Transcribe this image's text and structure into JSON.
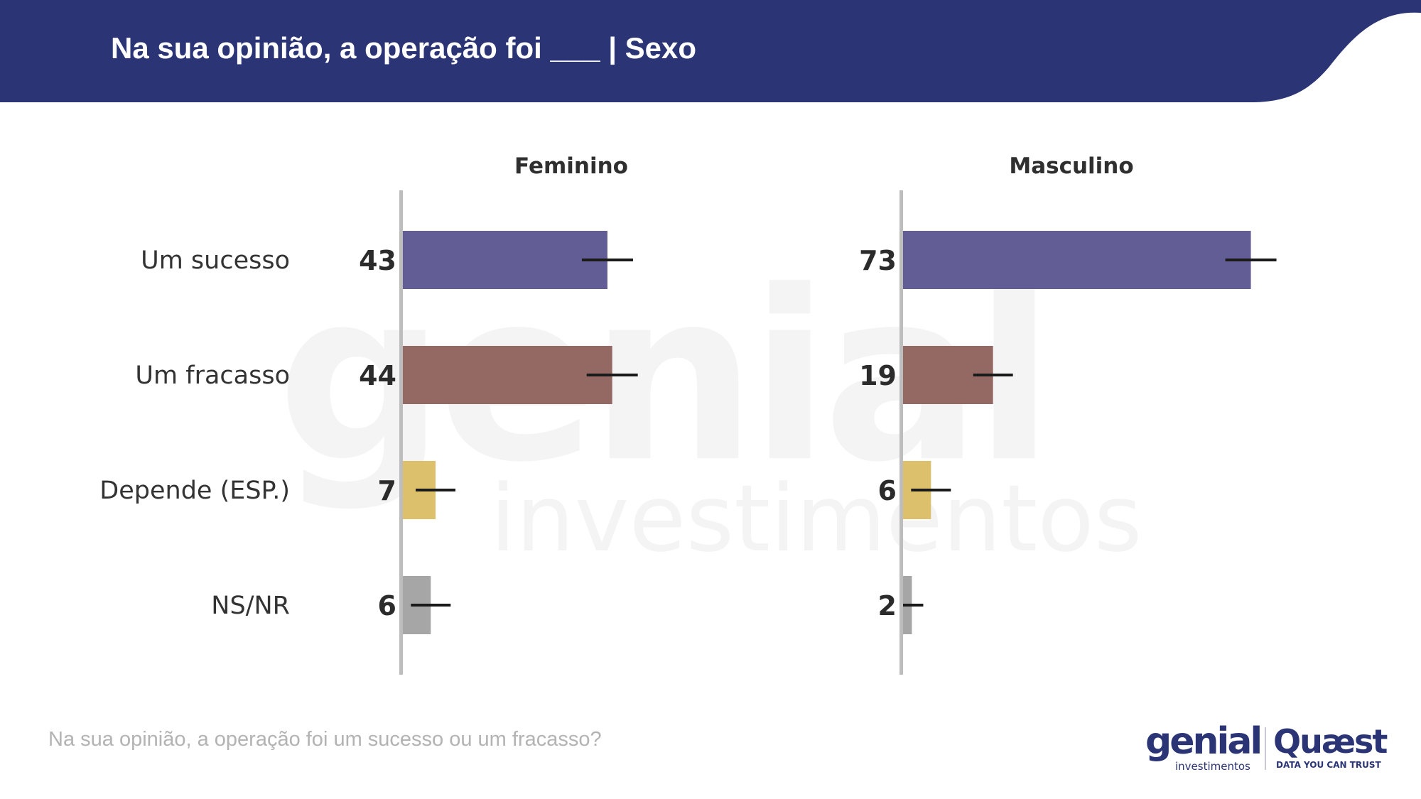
{
  "header": {
    "title": "Na sua opinião, a operação foi ___ | Sexo",
    "color": "#2b3576"
  },
  "watermark": {
    "main": "genial",
    "sub": "investimentos"
  },
  "chart_data": {
    "type": "bar",
    "orientation": "horizontal",
    "categories": [
      "Um sucesso",
      "Um fracasso",
      "Depende (ESP.)",
      "NS/NR"
    ],
    "colors": [
      "#625d95",
      "#946964",
      "#ddc06b",
      "#a6a6a6"
    ],
    "error_bars": true,
    "xlim": [
      0,
      100
    ],
    "panels": [
      {
        "title": "Feminino",
        "values": [
          43,
          44,
          7,
          6
        ]
      },
      {
        "title": "Masculino",
        "values": [
          73,
          19,
          6,
          2
        ]
      }
    ]
  },
  "footnote": "Na sua opinião, a operação foi um sucesso ou um fracasso?",
  "logos": {
    "genial": "genial",
    "genial_sub": "investimentos",
    "quaest": "Quæst",
    "quaest_sub": "DATA YOU CAN TRUST"
  }
}
